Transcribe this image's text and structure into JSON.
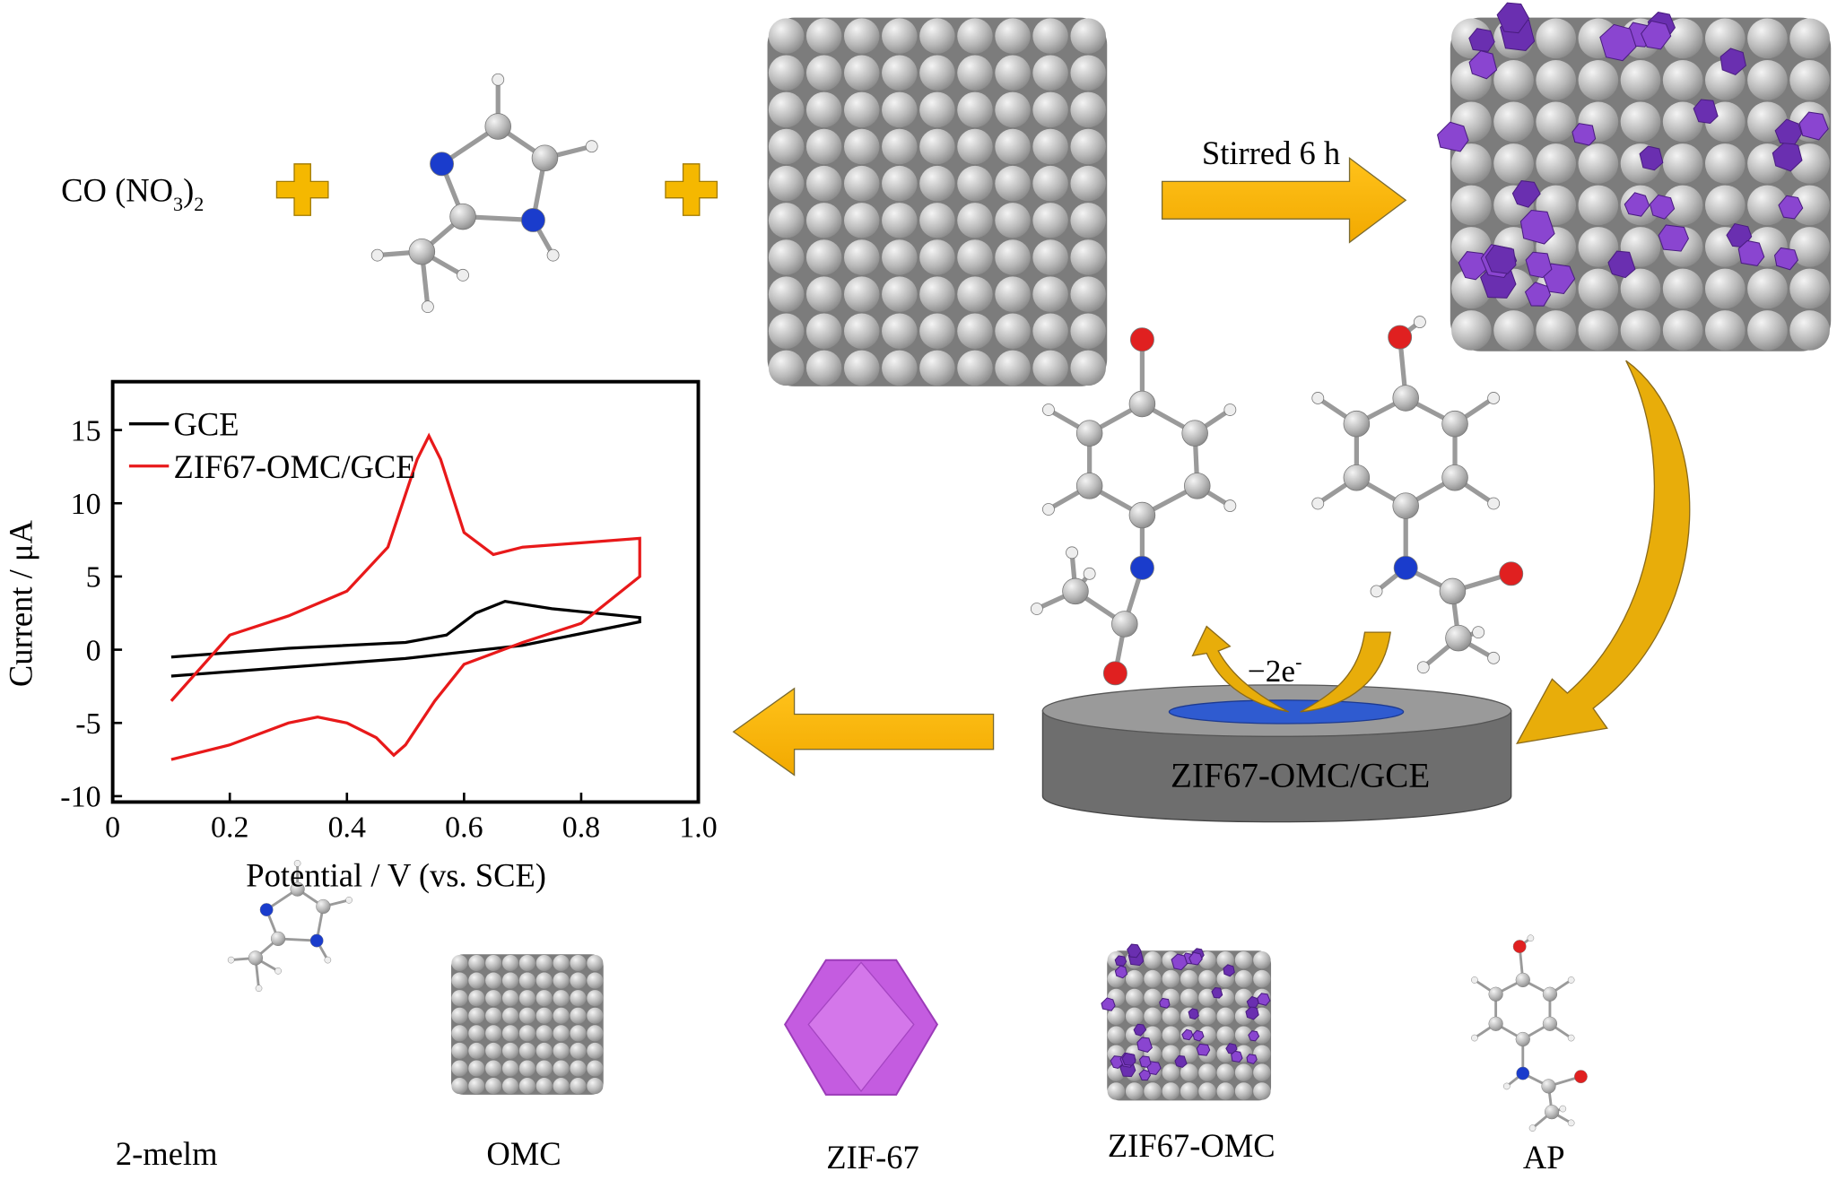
{
  "reaction": {
    "reagent": {
      "main": "CO (NO",
      "sub1": "3",
      "close": ")",
      "sub2": "2"
    },
    "step_label": "Stirred 6 h",
    "electron_label": {
      "main": "−2e",
      "sup": "-"
    },
    "electrode_label": "ZIF67-OMC/GCE"
  },
  "key": [
    "2-melm",
    "OMC",
    "ZIF-67",
    "ZIF67-OMC",
    "AP"
  ],
  "chart_data": {
    "type": "line",
    "xlabel": "Potential / V (vs. SCE)",
    "ylabel": "Current / μA",
    "xlim": [
      0,
      1
    ],
    "ylim": [
      -10.4,
      18.3
    ],
    "xticks": [
      0,
      0.2,
      0.4,
      0.6,
      0.8,
      {
        "value": 1,
        "label": "1.0"
      }
    ],
    "yticks": [
      -10,
      -5,
      0,
      5,
      10,
      15
    ],
    "legend": "upper left",
    "series": [
      {
        "name": "GCE",
        "color": "#000000",
        "x": [
          0.1,
          0.3,
          0.5,
          0.57,
          0.62,
          0.67,
          0.75,
          0.9,
          0.9,
          0.7,
          0.5,
          0.3,
          0.1
        ],
        "values": [
          -0.5,
          0.1,
          0.5,
          1,
          2.5,
          3.3,
          2.8,
          2.2,
          1.9,
          0.3,
          -0.6,
          -1.2,
          -1.8
        ]
      },
      {
        "name": "ZIF67-OMC/GCE",
        "color": "#e8191a",
        "x": [
          0.1,
          0.2,
          0.3,
          0.4,
          0.47,
          0.52,
          0.54,
          0.56,
          0.6,
          0.65,
          0.7,
          0.8,
          0.9,
          0.9,
          0.8,
          0.7,
          0.6,
          0.55,
          0.5,
          0.48,
          0.45,
          0.4,
          0.35,
          0.3,
          0.2,
          0.1
        ],
        "values": [
          -3.5,
          1,
          2.3,
          4,
          7,
          13,
          14.6,
          13,
          8,
          6.5,
          7,
          7.3,
          7.6,
          5,
          1.8,
          0.5,
          -1,
          -3.5,
          -6.5,
          -7.2,
          -6,
          -5,
          -4.6,
          -5,
          -6.5,
          -7.5
        ]
      }
    ]
  }
}
